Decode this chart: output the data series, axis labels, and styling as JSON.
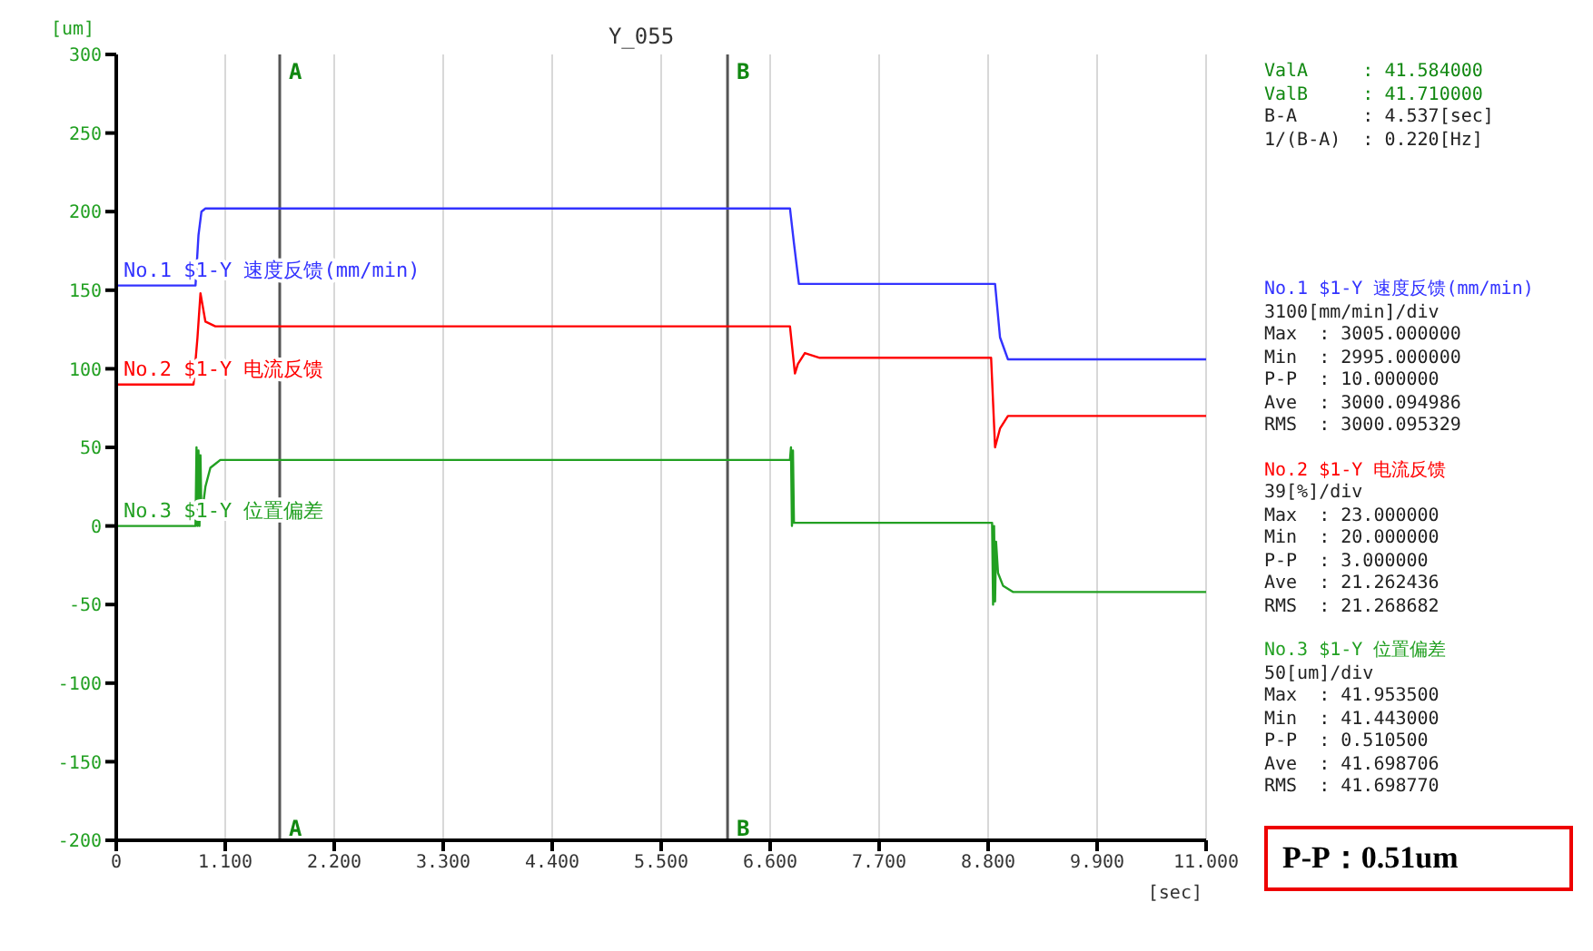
{
  "chart_data": {
    "type": "line",
    "title": "Y_055",
    "xlabel": "[sec]",
    "ylabel": "[um]",
    "xlim": [
      0,
      11
    ],
    "ylim": [
      -200,
      300
    ],
    "xticks": [
      0,
      {
        "value": 1.1,
        "label": "1.100"
      },
      {
        "value": 2.2,
        "label": "2.200"
      },
      {
        "value": 3.3,
        "label": "3.300"
      },
      {
        "value": 4.4,
        "label": "4.400"
      },
      {
        "value": 5.5,
        "label": "5.500"
      },
      {
        "value": 6.6,
        "label": "6.600"
      },
      {
        "value": 7.7,
        "label": "7.700"
      },
      {
        "value": 8.8,
        "label": "8.800"
      },
      {
        "value": 9.9,
        "label": "9.900"
      },
      {
        "value": 11,
        "label": "11.000"
      }
    ],
    "yticks": [
      -200,
      -150,
      -100,
      -50,
      0,
      50,
      100,
      150,
      200,
      250,
      300
    ],
    "grid": true,
    "marker": "none",
    "line_style": "solid",
    "series": [
      {
        "name": "No.1 $1-Y 速度反馈(mm/min)",
        "color": "#3333ff",
        "x": [
          0,
          0.8,
          0.83,
          0.86,
          0.9,
          6.8,
          6.84,
          6.89,
          8.87,
          8.92,
          9.0,
          11
        ],
        "values": [
          153,
          153,
          185,
          200,
          202,
          202,
          180,
          154,
          154,
          120,
          106,
          106
        ]
      },
      {
        "name": "No.2 $1-Y 电流反馈",
        "color": "#ff0000",
        "x": [
          0,
          0.78,
          0.82,
          0.85,
          0.9,
          1.0,
          6.8,
          6.85,
          6.88,
          6.95,
          7.1,
          8.83,
          8.87,
          8.92,
          9.0,
          11
        ],
        "values": [
          90,
          90,
          120,
          148,
          130,
          127,
          127,
          97,
          103,
          110,
          107,
          107,
          50,
          62,
          70,
          70
        ],
        "line_style": "solid"
      },
      {
        "name": "No.3 $1-Y 位置偏差",
        "color": "#22a022",
        "x": [
          0,
          0.8,
          0.81,
          0.82,
          0.83,
          0.84,
          0.85,
          0.86,
          0.9,
          0.95,
          1.05,
          6.8,
          6.81,
          6.82,
          6.83,
          6.84,
          6.86,
          6.9,
          8.84,
          8.85,
          8.86,
          8.87,
          8.88,
          8.9,
          8.95,
          9.05,
          11
        ],
        "values": [
          0,
          0,
          50,
          0,
          48,
          0,
          45,
          5,
          25,
          37,
          42,
          42,
          50,
          0,
          48,
          2,
          2,
          2,
          2,
          -50,
          0,
          -48,
          -10,
          -30,
          -38,
          -42,
          -42
        ]
      }
    ],
    "ref_lines": [
      {
        "axis": "x",
        "value": 1.65,
        "label": "A",
        "color": "#555555"
      },
      {
        "axis": "x",
        "value": 6.17,
        "label": "B",
        "color": "#555555"
      }
    ],
    "annotations": [
      {
        "text": "A",
        "x": 1.65,
        "y": -192
      },
      {
        "text": "B",
        "x": 6.17,
        "y": -192
      },
      "ValA     : 41.584000",
      "ValB     : 41.710000",
      "B-A      : 4.537[sec]",
      "1/(B-A)  : 0.220[Hz]",
      "No.1 $1-Y 速度反馈(mm/min)",
      "3100[mm/min]/div",
      "Max  : 3005.000000",
      "Min  : 2995.000000",
      "P-P  : 10.000000",
      "Ave  : 3000.094986",
      "RMS  : 3000.095329",
      "No.2 $1-Y 电流反馈",
      "39[%]/div",
      "Max  : 23.000000",
      "Min  : 20.000000",
      "P-P  : 3.000000",
      "Ave  : 21.262436",
      "RMS  : 21.268682",
      "No.3 $1-Y 位置偏差",
      "50[um]/div",
      "Max  : 41.953500",
      "Min  : 41.443000",
      "P-P  : 0.510500",
      "Ave  : 41.698706",
      "RMS  : 41.698770",
      "P-P：0.51um"
    ]
  }
}
